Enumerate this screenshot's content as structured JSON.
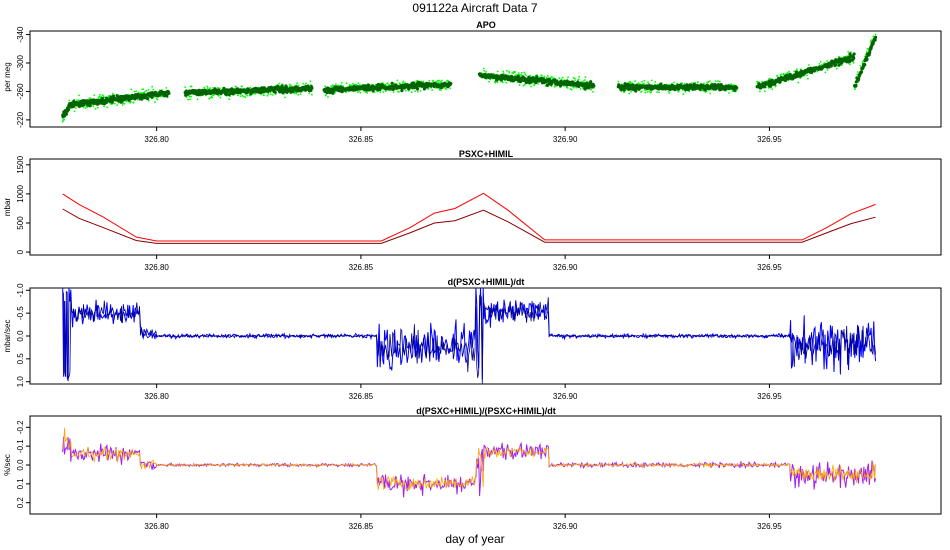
{
  "title": "091122a   Aircraft Data 7",
  "xlabel": "day of year",
  "colors": {
    "apo_dark": "#006400",
    "apo_light": "#00ff00",
    "psx_line1": "#ff0000",
    "psx_line2": "#8b0000",
    "deriv_dark": "#00008b",
    "deriv_light": "#0000ff",
    "rel_purple": "#a020f0",
    "rel_orange": "#ffa500"
  },
  "chart_data": [
    {
      "type": "scatter",
      "title": "APO",
      "ylabel": "per meg",
      "xlim": [
        326.769,
        326.992
      ],
      "ylim": [
        -345,
        -210
      ],
      "yreversed": true,
      "xticks": [
        "326.80",
        "326.85",
        "326.90",
        "326.95"
      ],
      "yticks": [
        "-220",
        "-260",
        "-300",
        "-340"
      ],
      "segments": [
        {
          "x": [
            326.777,
            326.803
          ],
          "y_start": -240,
          "y_end": -258
        },
        {
          "x": [
            326.807,
            326.838
          ],
          "y_start": -258,
          "y_end": -264
        },
        {
          "x": [
            326.841,
            326.872
          ],
          "y_start": -262,
          "y_end": -270
        },
        {
          "x": [
            326.879,
            326.907
          ],
          "y_start": -283,
          "y_end": -268
        },
        {
          "x": [
            326.913,
            326.942
          ],
          "y_start": -266,
          "y_end": -266
        },
        {
          "x": [
            326.947,
            326.976
          ],
          "y_start": -266,
          "y_end": -318
        }
      ],
      "series": [
        {
          "name": "",
          "color": "#00ff00"
        },
        {
          "name": "",
          "color": "#006400"
        }
      ]
    },
    {
      "type": "line",
      "title": "PSXC+HIMIL",
      "ylabel": "mbar",
      "xlim": [
        326.769,
        326.992
      ],
      "ylim": [
        -50,
        1600
      ],
      "xticks": [
        "326.80",
        "326.85",
        "326.90",
        "326.95"
      ],
      "yticks": [
        "0",
        "500",
        "1000",
        "1500"
      ],
      "series": [
        {
          "name": "",
          "color": "#ff0000",
          "x": [
            326.777,
            326.781,
            326.787,
            326.795,
            326.8,
            326.855,
            326.862,
            326.868,
            326.873,
            326.88,
            326.886,
            326.895,
            326.958,
            326.964,
            326.97,
            326.976
          ],
          "y": [
            1000,
            820,
            600,
            260,
            190,
            190,
            420,
            670,
            750,
            1010,
            720,
            210,
            210,
            420,
            660,
            820
          ]
        },
        {
          "name": "",
          "color": "#8b0000",
          "x": [
            326.777,
            326.781,
            326.787,
            326.795,
            326.8,
            326.855,
            326.862,
            326.868,
            326.873,
            326.88,
            326.886,
            326.895,
            326.958,
            326.964,
            326.97,
            326.976
          ],
          "y": [
            740,
            580,
            420,
            200,
            150,
            150,
            330,
            500,
            540,
            720,
            520,
            170,
            170,
            330,
            490,
            600
          ]
        }
      ]
    },
    {
      "type": "line",
      "title": "d(PSXC+HIMIL)/dt",
      "ylabel": "mbar/sec",
      "xlim": [
        326.769,
        326.992
      ],
      "ylim": [
        -1.05,
        1.05
      ],
      "yreversed": true,
      "xticks": [
        "326.80",
        "326.85",
        "326.90",
        "326.95"
      ],
      "yticks": [
        "-1.0",
        "-0.5",
        "0.0",
        "0.5",
        "1.0"
      ],
      "series": [
        {
          "name": "",
          "color": "#0000ff"
        },
        {
          "name": "",
          "color": "#00008b"
        }
      ]
    },
    {
      "type": "line",
      "title": "d(PSXC+HIMIL)/(PSXC+HIMIL)/dt",
      "ylabel": "%/sec",
      "xlim": [
        326.769,
        326.992
      ],
      "ylim": [
        -0.26,
        0.26
      ],
      "yreversed": true,
      "xticks": [
        "326.80",
        "326.85",
        "326.90",
        "326.95"
      ],
      "yticks": [
        "-0.2",
        "-0.1",
        "0.0",
        "0.1",
        "0.2"
      ],
      "series": [
        {
          "name": "",
          "color": "#a020f0"
        },
        {
          "name": "",
          "color": "#ffa500"
        }
      ]
    }
  ]
}
